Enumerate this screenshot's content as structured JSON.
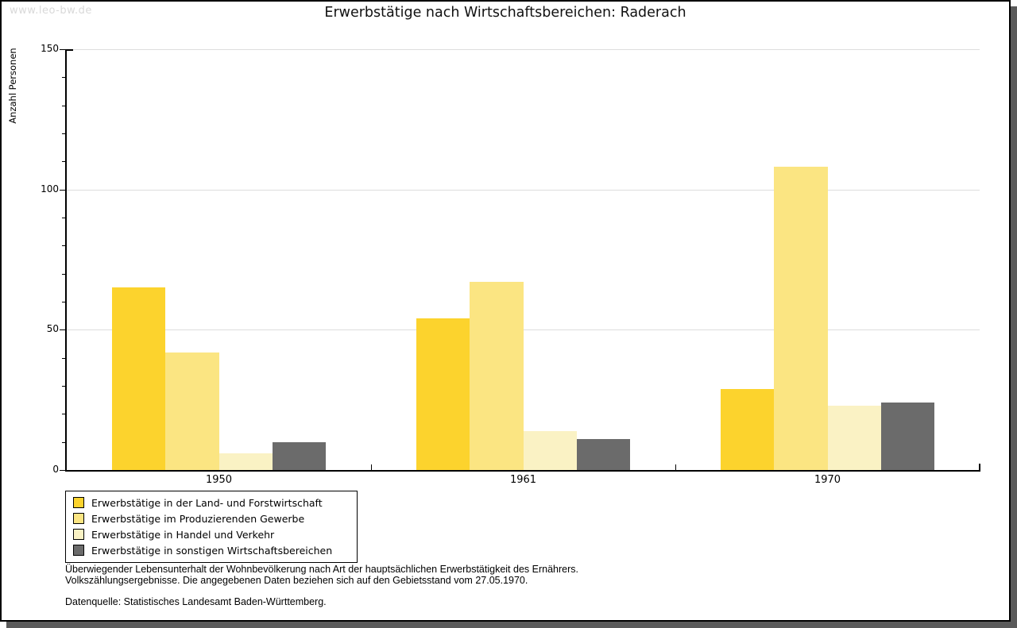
{
  "watermark": "www.leo-bw.de",
  "title": "Erwerbstätige nach Wirtschaftsbereichen: Raderach",
  "chart_data": {
    "type": "bar",
    "title": "Erwerbstätige nach Wirtschaftsbereichen: Raderach",
    "xlabel": "",
    "ylabel": "Anzahl Personen",
    "categories": [
      "1950",
      "1961",
      "1970"
    ],
    "series": [
      {
        "name": "Erwerbstätige in der Land- und Forstwirtschaft",
        "color": "#FCD32D",
        "values": [
          65,
          54,
          29
        ]
      },
      {
        "name": "Erwerbstätige im Produzierenden Gewerbe",
        "color": "#FBE582",
        "values": [
          42,
          67,
          108
        ]
      },
      {
        "name": "Erwerbstätige in Handel und Verkehr",
        "color": "#FAF2C4",
        "values": [
          6,
          14,
          23
        ]
      },
      {
        "name": "Erwerbstätige in sonstigen Wirtschaftsbereichen",
        "color": "#6B6B6B",
        "values": [
          10,
          11,
          24
        ]
      }
    ],
    "ylim": [
      0,
      150
    ],
    "yticks": [
      0,
      50,
      100,
      150
    ],
    "minor_tick_step": 10,
    "grid": true,
    "legend_position": "bottom-left"
  },
  "footer": {
    "line1": "Überwiegender Lebensunterhalt der Wohnbevölkerung nach Art der hauptsächlichen Erwerbstätigkeit des Ernährers.",
    "line2": "Volkszählungsergebnisse. Die angegebenen Daten beziehen sich auf den Gebietsstand vom 27.05.1970.",
    "source": "Datenquelle: Statistisches Landesamt Baden-Württemberg."
  },
  "colors": {
    "grid": "#DDDDDD",
    "axis": "#000000",
    "shadow": "#5A5A5A",
    "watermark": "#D9D9D9"
  }
}
